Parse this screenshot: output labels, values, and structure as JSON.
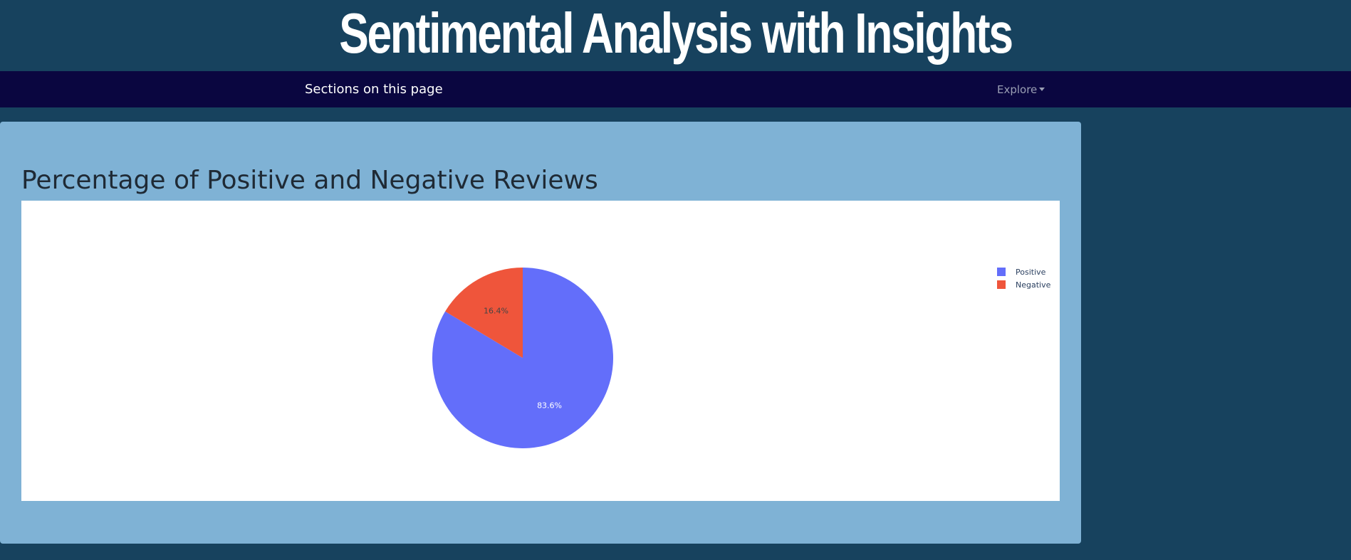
{
  "header": {
    "title": "Sentimental Analysis with Insights"
  },
  "navbar": {
    "sections_label": "Sections on this page",
    "explore_label": "Explore"
  },
  "card": {
    "title": "Percentage of Positive and Negative Reviews"
  },
  "chart_data": {
    "type": "pie",
    "categories": [
      "Positive",
      "Negative"
    ],
    "values": [
      83.6,
      16.4
    ],
    "labels": [
      "83.6%",
      "16.4%"
    ],
    "colors": [
      "#636efa",
      "#ef553b"
    ],
    "legend": [
      "Positive",
      "Negative"
    ],
    "legend_position": "top-right"
  }
}
